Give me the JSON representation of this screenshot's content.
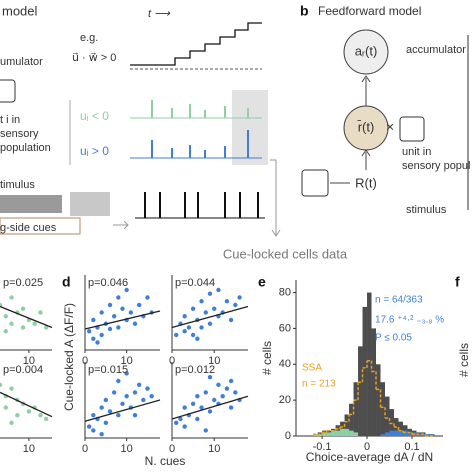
{
  "figure": {
    "a": {
      "title": "model",
      "eg": "e.g.",
      "condition": "u⃗ · w⃗ > 0",
      "time": "t ⟶",
      "accumulator": "umulator",
      "unit": "t i in",
      "sensory": "sensory",
      "population": "population",
      "neg": "uᵢ < 0",
      "pos": "uᵢ > 0",
      "stimulus": "timulus",
      "cues": "g-side cues",
      "data": "Cue-locked cells data"
    },
    "b": {
      "letter": "b",
      "title": "Feedforward model",
      "acc_node": "aᵣ(t)",
      "accumulator": "accumulator",
      "rate_node": "r̄(t)",
      "times": "×",
      "unit": "unit in",
      "sensory": "sensory popul",
      "stim_node": "R(t)",
      "stimulus": "stimulus"
    },
    "d": {
      "letter": "d",
      "ylabel": "Cue-locked A (ΔF/F)",
      "xlabel": "N. cues"
    },
    "e": {
      "letter": "e"
    },
    "f": {
      "letter": "f",
      "ylabel": "# cells"
    }
  },
  "chart_data": [
    {
      "type": "scatter",
      "title": "p=0.025",
      "color": "#8fcfa4",
      "xlim": [
        5,
        14
      ],
      "ylim": [
        0,
        1
      ],
      "xticks": [
        10
      ],
      "x": [
        5,
        6,
        7,
        7,
        8,
        9,
        9,
        10,
        11,
        12,
        13,
        6
      ],
      "y": [
        0.6,
        0.45,
        0.7,
        0.35,
        0.5,
        0.55,
        0.3,
        0.4,
        0.35,
        0.5,
        0.3,
        0.25
      ],
      "fit": [
        0.58,
        0.3
      ]
    },
    {
      "type": "scatter",
      "title": "p=0.004",
      "color": "#8fcfa4",
      "xlim": [
        5,
        14
      ],
      "ylim": [
        0,
        1
      ],
      "xticks": [
        10
      ],
      "x": [
        5,
        6,
        6,
        7,
        8,
        8,
        9,
        10,
        11,
        12,
        13,
        7
      ],
      "y": [
        0.7,
        0.55,
        0.4,
        0.65,
        0.5,
        0.3,
        0.45,
        0.35,
        0.4,
        0.3,
        0.25,
        0.2
      ],
      "fit": [
        0.6,
        0.28
      ]
    },
    {
      "type": "scatter",
      "title": "p=0.046",
      "color": "#3f7fd6",
      "xlim": [
        0,
        18
      ],
      "ylim": [
        0,
        1
      ],
      "xticks": [
        0,
        10
      ],
      "x": [
        1,
        2,
        2,
        3,
        4,
        4,
        5,
        6,
        6,
        7,
        8,
        8,
        9,
        10,
        10,
        11,
        12,
        13,
        14,
        15,
        16,
        3
      ],
      "y": [
        0.25,
        0.4,
        0.15,
        0.3,
        0.5,
        0.2,
        0.35,
        0.6,
        0.28,
        0.45,
        0.7,
        0.3,
        0.55,
        0.4,
        0.8,
        0.5,
        0.35,
        0.6,
        0.45,
        0.7,
        0.5,
        0.1
      ],
      "fit": [
        0.28,
        0.52
      ]
    },
    {
      "type": "scatter",
      "title": "p=0.044",
      "color": "#3f7fd6",
      "xlim": [
        0,
        18
      ],
      "ylim": [
        0,
        1
      ],
      "xticks": [
        0,
        10
      ],
      "x": [
        1,
        2,
        3,
        3,
        4,
        5,
        5,
        6,
        7,
        7,
        8,
        9,
        9,
        10,
        11,
        11,
        12,
        13,
        14,
        15,
        16,
        6
      ],
      "y": [
        0.2,
        0.35,
        0.25,
        0.45,
        0.3,
        0.55,
        0.2,
        0.4,
        0.65,
        0.3,
        0.5,
        0.75,
        0.35,
        0.55,
        0.45,
        0.8,
        0.5,
        0.65,
        0.4,
        0.6,
        0.7,
        0.15
      ],
      "fit": [
        0.3,
        0.58
      ]
    },
    {
      "type": "scatter",
      "title": "p=0.015",
      "color": "#3f7fd6",
      "xlim": [
        0,
        18
      ],
      "ylim": [
        0,
        1
      ],
      "xticks": [
        0,
        10
      ],
      "x": [
        1,
        2,
        2,
        3,
        4,
        5,
        5,
        6,
        7,
        8,
        8,
        9,
        10,
        10,
        11,
        12,
        12,
        13,
        14,
        15,
        16,
        4
      ],
      "y": [
        0.15,
        0.3,
        0.1,
        0.25,
        0.4,
        0.2,
        0.5,
        0.35,
        0.6,
        0.3,
        0.75,
        0.45,
        0.55,
        0.85,
        0.4,
        0.6,
        0.3,
        0.7,
        0.5,
        0.65,
        0.55,
        0.05
      ],
      "fit": [
        0.22,
        0.5
      ]
    },
    {
      "type": "scatter",
      "title": "p=0.012",
      "color": "#3f7fd6",
      "xlim": [
        0,
        18
      ],
      "ylim": [
        0,
        1
      ],
      "xticks": [
        0,
        10
      ],
      "x": [
        1,
        2,
        3,
        3,
        4,
        5,
        6,
        6,
        7,
        8,
        9,
        9,
        10,
        11,
        11,
        12,
        13,
        14,
        14,
        15,
        16,
        8
      ],
      "y": [
        0.2,
        0.25,
        0.4,
        0.15,
        0.3,
        0.45,
        0.25,
        0.55,
        0.4,
        0.6,
        0.35,
        0.8,
        0.5,
        0.45,
        0.7,
        0.55,
        0.65,
        0.4,
        0.75,
        0.6,
        0.5,
        0.1
      ],
      "fit": [
        0.25,
        0.55
      ]
    },
    {
      "type": "histogram",
      "ylabel": "# cells",
      "xlabel": "Choice-average dA / dN",
      "xlim": [
        -0.158,
        0.169
      ],
      "ylim": [
        0,
        87
      ],
      "xticks": [
        -0.1,
        0,
        0.1
      ],
      "yticks": [
        0,
        20,
        40,
        60,
        80
      ],
      "bins": [
        -0.12,
        -0.11,
        -0.1,
        -0.09,
        -0.08,
        -0.07,
        -0.06,
        -0.05,
        -0.04,
        -0.03,
        -0.02,
        -0.01,
        0,
        0.01,
        0.02,
        0.03,
        0.04,
        0.05,
        0.06,
        0.07,
        0.08,
        0.09,
        0.1,
        0.11,
        0.12,
        0.13,
        0.14,
        0.15
      ],
      "series": [
        {
          "color": "#4d4d4d",
          "values": [
            1,
            2,
            3,
            3,
            4,
            6,
            8,
            12,
            18,
            30,
            50,
            72,
            80,
            60,
            40,
            30,
            22,
            15,
            10,
            8,
            6,
            4,
            3,
            2,
            2,
            1,
            1
          ]
        },
        {
          "color": "#8fcfa4",
          "values": [
            1,
            1,
            2,
            2,
            3,
            3,
            4,
            4,
            3,
            2,
            0,
            0,
            0,
            0,
            0,
            0,
            0,
            0,
            0,
            0,
            0,
            0,
            0,
            0,
            0,
            0,
            0
          ]
        },
        {
          "color": "#3f7fd6",
          "values": [
            0,
            0,
            0,
            0,
            0,
            0,
            0,
            0,
            0,
            0,
            0,
            0,
            0,
            0,
            0,
            1,
            2,
            3,
            3,
            3,
            3,
            2,
            2,
            1,
            1,
            1,
            1
          ]
        },
        {
          "color": "#e8a020",
          "style": "dashed",
          "values": [
            1,
            1,
            2,
            3,
            3,
            4,
            5,
            8,
            12,
            20,
            30,
            38,
            42,
            36,
            26,
            16,
            10,
            7,
            5,
            3,
            2,
            2,
            1,
            1,
            1,
            0,
            0
          ]
        }
      ],
      "annotations": [
        {
          "text": "n = 64/363",
          "color": "#3f7fd6"
        },
        {
          "text": "17.6 ⁺⁴·² ₋₃.₈ %",
          "color": "#3f7fd6"
        },
        {
          "text": "P  ≤ 0.05",
          "color": "#3f7fd6"
        },
        {
          "text": "SSA",
          "color": "#e8a020"
        },
        {
          "text": "n = 213",
          "color": "#e8a020"
        }
      ]
    }
  ]
}
